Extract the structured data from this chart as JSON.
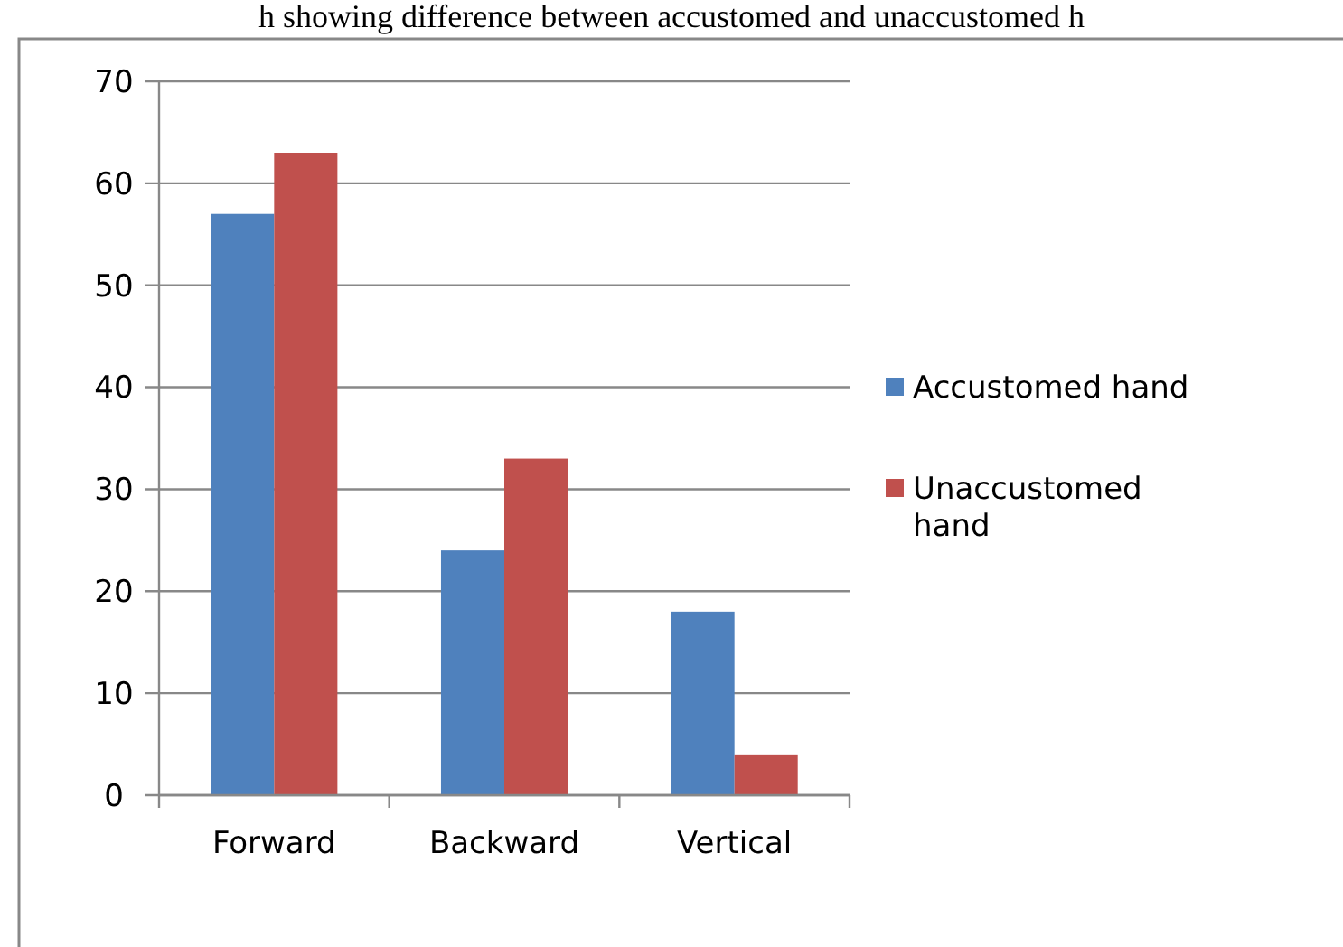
{
  "chart_data": {
    "type": "bar",
    "title": "h showing difference between accustomed and unaccustomed h",
    "categories": [
      "Forward",
      "Backward",
      "Vertical"
    ],
    "series": [
      {
        "name": "Accustomed hand",
        "color": "#4f81bd",
        "values": [
          57,
          24,
          18
        ]
      },
      {
        "name": "Unaccustomed hand",
        "color": "#c0504d",
        "values": [
          63,
          33,
          4
        ]
      }
    ],
    "ylim": [
      0,
      70
    ],
    "yticks": [
      0,
      10,
      20,
      30,
      40,
      50,
      60,
      70
    ],
    "grid": "y",
    "legend": "right"
  }
}
